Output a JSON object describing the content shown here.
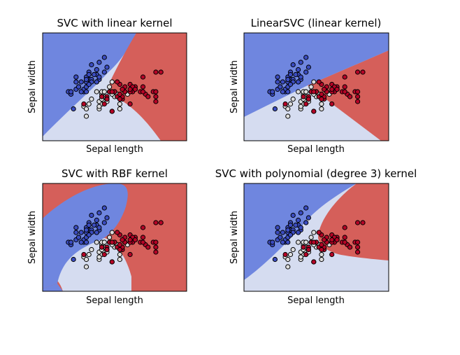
{
  "colors": {
    "region_class_0": "#6f86df",
    "region_class_1": "#d5dcf0",
    "region_class_2": "#d55f5a",
    "point_class_0": "#3b4cc0",
    "point_class_1": "#dddddd",
    "point_class_2": "#b40426",
    "axes_frame": "#000000"
  },
  "chart_data": [
    {
      "type": "scatter",
      "title": "SVC with linear kernel",
      "xlabel": "Sepal length",
      "ylabel": "Sepal width",
      "xlim": [
        3.3,
        8.9
      ],
      "ylim": [
        1.0,
        5.4
      ],
      "ticks": "hidden",
      "background": "decision regions (class 0 upper-left blue, class 1 lower light, class 2 right red)",
      "series": [
        {
          "class": 0,
          "color": "point_class_0",
          "points": [
            [
              5.1,
              3.5
            ],
            [
              4.9,
              3.0
            ],
            [
              4.7,
              3.2
            ],
            [
              4.6,
              3.1
            ],
            [
              5.0,
              3.6
            ],
            [
              5.4,
              3.9
            ],
            [
              4.6,
              3.4
            ],
            [
              5.0,
              3.4
            ],
            [
              4.4,
              2.9
            ],
            [
              4.9,
              3.1
            ],
            [
              5.4,
              3.7
            ],
            [
              4.8,
              3.4
            ],
            [
              4.8,
              3.0
            ],
            [
              4.3,
              3.0
            ],
            [
              5.8,
              4.0
            ],
            [
              5.7,
              4.4
            ],
            [
              5.2,
              3.5
            ],
            [
              5.2,
              3.4
            ],
            [
              4.7,
              3.2
            ],
            [
              5.4,
              3.4
            ],
            [
              5.2,
              4.1
            ],
            [
              5.5,
              4.2
            ],
            [
              5.0,
              3.2
            ],
            [
              5.5,
              3.5
            ],
            [
              4.4,
              3.0
            ],
            [
              5.1,
              3.8
            ],
            [
              4.5,
              2.3
            ],
            [
              5.3,
              3.7
            ],
            [
              5.1,
              3.3
            ],
            [
              5.7,
              3.8
            ],
            [
              4.6,
              3.6
            ],
            [
              5.0,
              3.0
            ],
            [
              5.4,
              3.4
            ],
            [
              5.1,
              3.7
            ],
            [
              5.0,
              3.5
            ],
            [
              5.5,
              3.6
            ]
          ]
        },
        {
          "class": 1,
          "color": "point_class_1",
          "points": [
            [
              5.5,
              2.3
            ],
            [
              5.7,
              2.8
            ],
            [
              4.9,
              2.4
            ],
            [
              5.2,
              2.7
            ],
            [
              5.0,
              2.0
            ],
            [
              5.9,
              3.0
            ],
            [
              6.0,
              2.2
            ],
            [
              5.6,
              2.9
            ],
            [
              5.6,
              2.5
            ],
            [
              5.9,
              3.2
            ],
            [
              6.1,
              2.8
            ],
            [
              6.3,
              2.5
            ],
            [
              5.7,
              2.6
            ],
            [
              5.5,
              2.4
            ],
            [
              5.8,
              2.7
            ],
            [
              5.4,
              3.0
            ],
            [
              6.0,
              3.4
            ],
            [
              6.3,
              2.3
            ],
            [
              5.6,
              3.0
            ],
            [
              5.5,
              2.6
            ],
            [
              5.8,
              2.6
            ],
            [
              5.0,
              2.3
            ],
            [
              5.6,
              2.7
            ],
            [
              5.7,
              3.0
            ],
            [
              6.2,
              2.9
            ],
            [
              5.1,
              2.5
            ],
            [
              6.6,
              2.9
            ],
            [
              6.0,
              2.9
            ],
            [
              6.1,
              3.0
            ],
            [
              5.6,
              2.8
            ]
          ]
        },
        {
          "class": 2,
          "color": "point_class_2",
          "points": [
            [
              6.3,
              3.3
            ],
            [
              7.1,
              3.0
            ],
            [
              6.5,
              3.0
            ],
            [
              7.6,
              3.0
            ],
            [
              4.9,
              2.5
            ],
            [
              7.3,
              2.9
            ],
            [
              6.7,
              2.5
            ],
            [
              7.2,
              3.6
            ],
            [
              6.4,
              2.7
            ],
            [
              6.8,
              3.0
            ],
            [
              5.7,
              2.5
            ],
            [
              5.8,
              2.8
            ],
            [
              7.7,
              3.8
            ],
            [
              7.7,
              2.6
            ],
            [
              6.0,
              2.2
            ],
            [
              6.9,
              3.2
            ],
            [
              5.6,
              2.8
            ],
            [
              7.7,
              2.8
            ],
            [
              6.7,
              3.3
            ],
            [
              7.2,
              3.2
            ],
            [
              6.2,
              2.8
            ],
            [
              6.1,
              3.0
            ],
            [
              6.4,
              2.8
            ],
            [
              7.4,
              2.8
            ],
            [
              7.9,
              3.8
            ],
            [
              6.3,
              2.7
            ],
            [
              7.7,
              3.0
            ],
            [
              6.9,
              3.1
            ],
            [
              5.8,
              2.7
            ],
            [
              6.8,
              3.2
            ],
            [
              6.7,
              3.0
            ],
            [
              6.5,
              3.2
            ],
            [
              6.2,
              3.4
            ],
            [
              5.9,
              3.0
            ],
            [
              6.5,
              3.0
            ],
            [
              6.9,
              3.1
            ],
            [
              6.7,
              3.1
            ],
            [
              5.8,
              2.7
            ],
            [
              7.2,
              3.0
            ],
            [
              6.4,
              3.1
            ],
            [
              6.0,
              3.0
            ],
            [
              6.3,
              2.9
            ]
          ]
        }
      ]
    },
    {
      "type": "scatter",
      "title": "LinearSVC (linear kernel)",
      "xlabel": "Sepal length",
      "ylabel": "Sepal width",
      "xlim": [
        3.3,
        8.9
      ],
      "ylim": [
        1.0,
        5.4
      ],
      "ticks": "hidden",
      "background": "decision regions (linear boundaries)",
      "same_points_as": 0
    },
    {
      "type": "scatter",
      "title": "SVC with RBF kernel",
      "xlabel": "Sepal length",
      "ylabel": "Sepal width",
      "xlim": [
        3.3,
        8.9
      ],
      "ylim": [
        1.0,
        5.4
      ],
      "ticks": "hidden",
      "background": "decision regions (curved RBF boundaries)",
      "same_points_as": 0
    },
    {
      "type": "scatter",
      "title": "SVC with polynomial (degree 3) kernel",
      "xlabel": "Sepal length",
      "ylabel": "Sepal width",
      "xlim": [
        3.3,
        8.9
      ],
      "ylim": [
        1.0,
        5.4
      ],
      "ticks": "hidden",
      "background": "decision regions (polynomial boundaries)",
      "same_points_as": 0
    }
  ]
}
